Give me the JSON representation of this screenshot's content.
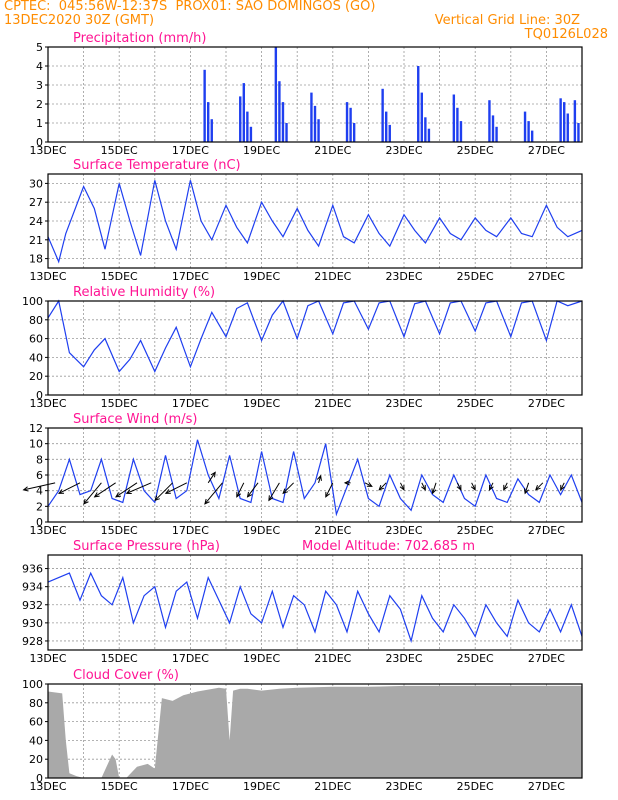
{
  "header": {
    "line1_left": "CPTEC:  045:56W-12:37S  PROX01: SAO DOMINGOS (GO)",
    "line2_left": "13DEC2020 30Z (GMT)",
    "line2_right": "Vertical Grid Line: 30Z",
    "line3_right": "TQ0126L028"
  },
  "colors": {
    "title": "#ff1493",
    "series": "#1f3ff0",
    "cloud": "#a9a9a9",
    "header": "#ff8c00"
  },
  "chart_data": [
    {
      "id": "precip",
      "type": "bar",
      "title": "Precipitation (mm/h)",
      "ylim": [
        0,
        5
      ],
      "yticks": [
        0,
        1,
        2,
        3,
        4,
        5
      ],
      "xlim_days": [
        13,
        28
      ],
      "xtick_labels": [
        "13DEC",
        "15DEC",
        "17DEC",
        "19DEC",
        "21DEC",
        "23DEC",
        "25DEC",
        "27DEC"
      ],
      "grid": true,
      "x_day": [
        17.4,
        17.5,
        17.6,
        18.4,
        18.5,
        18.6,
        18.7,
        19.4,
        19.5,
        19.6,
        19.7,
        20.4,
        20.5,
        20.6,
        21.4,
        21.5,
        21.6,
        22.4,
        22.5,
        22.6,
        23.4,
        23.5,
        23.6,
        23.7,
        24.4,
        24.5,
        24.6,
        25.4,
        25.5,
        25.6,
        26.4,
        26.5,
        26.6,
        27.4,
        27.5,
        27.6,
        27.8,
        27.9
      ],
      "values": [
        3.8,
        2.1,
        1.2,
        2.4,
        3.1,
        1.6,
        0.8,
        5.0,
        3.2,
        2.1,
        1.0,
        2.6,
        1.9,
        1.2,
        2.1,
        1.8,
        1.0,
        2.8,
        1.6,
        0.9,
        4.0,
        2.6,
        1.3,
        0.7,
        2.5,
        1.8,
        1.1,
        2.2,
        1.4,
        0.8,
        1.6,
        1.1,
        0.6,
        2.3,
        2.1,
        1.5,
        2.2,
        1.0
      ]
    },
    {
      "id": "temp",
      "type": "line",
      "title": "Surface Temperature (nC)",
      "ylim": [
        16.5,
        31.5
      ],
      "yticks": [
        18,
        21,
        24,
        27,
        30
      ],
      "xlim_days": [
        13,
        28
      ],
      "xtick_labels": [
        "13DEC",
        "15DEC",
        "17DEC",
        "19DEC",
        "21DEC",
        "23DEC",
        "25DEC",
        "27DEC"
      ],
      "grid": true,
      "x_day": [
        13.0,
        13.3,
        13.5,
        14.0,
        14.3,
        14.6,
        15.0,
        15.3,
        15.6,
        16.0,
        16.3,
        16.6,
        17.0,
        17.3,
        17.6,
        18.0,
        18.3,
        18.6,
        19.0,
        19.3,
        19.6,
        20.0,
        20.3,
        20.6,
        21.0,
        21.3,
        21.6,
        22.0,
        22.3,
        22.6,
        23.0,
        23.3,
        23.6,
        24.0,
        24.3,
        24.6,
        25.0,
        25.3,
        25.6,
        26.0,
        26.3,
        26.6,
        27.0,
        27.3,
        27.6,
        28.0
      ],
      "values": [
        21.5,
        17.5,
        22.0,
        29.5,
        26.0,
        19.5,
        30.0,
        24.0,
        18.5,
        30.5,
        24.0,
        19.5,
        30.5,
        24.0,
        21.0,
        26.5,
        23.0,
        20.5,
        27.0,
        24.0,
        21.5,
        26.0,
        22.5,
        20.0,
        26.5,
        21.5,
        20.5,
        25.0,
        22.0,
        20.0,
        25.0,
        22.5,
        20.5,
        24.5,
        22.0,
        21.0,
        24.5,
        22.5,
        21.5,
        24.5,
        22.0,
        21.5,
        26.5,
        23.0,
        21.5,
        22.5
      ]
    },
    {
      "id": "rh",
      "type": "line",
      "title": "Relative Humidity (%)",
      "ylim": [
        0,
        100
      ],
      "yticks": [
        0,
        20,
        40,
        60,
        80,
        100
      ],
      "xlim_days": [
        13,
        28
      ],
      "xtick_labels": [
        "13DEC",
        "15DEC",
        "17DEC",
        "19DEC",
        "21DEC",
        "23DEC",
        "25DEC",
        "27DEC"
      ],
      "grid": true,
      "x_day": [
        13.0,
        13.3,
        13.6,
        14.0,
        14.3,
        14.6,
        15.0,
        15.3,
        15.6,
        16.0,
        16.3,
        16.6,
        17.0,
        17.3,
        17.6,
        18.0,
        18.3,
        18.6,
        19.0,
        19.3,
        19.6,
        20.0,
        20.3,
        20.6,
        21.0,
        21.3,
        21.6,
        22.0,
        22.3,
        22.6,
        23.0,
        23.3,
        23.6,
        24.0,
        24.3,
        24.6,
        25.0,
        25.3,
        25.6,
        26.0,
        26.3,
        26.6,
        27.0,
        27.3,
        27.6,
        28.0
      ],
      "values": [
        82,
        100,
        45,
        30,
        48,
        60,
        25,
        38,
        58,
        25,
        50,
        72,
        30,
        60,
        88,
        62,
        92,
        98,
        58,
        85,
        100,
        60,
        95,
        100,
        65,
        98,
        100,
        70,
        98,
        100,
        62,
        97,
        100,
        65,
        98,
        100,
        68,
        98,
        100,
        62,
        98,
        100,
        58,
        100,
        95,
        100
      ]
    },
    {
      "id": "wind",
      "type": "line",
      "title": "Surface Wind (m/s)",
      "ylim": [
        0,
        12
      ],
      "yticks": [
        0,
        2,
        4,
        6,
        8,
        10,
        12
      ],
      "xlim_days": [
        13,
        28
      ],
      "xtick_labels": [
        "13DEC",
        "15DEC",
        "17DEC",
        "19DEC",
        "21DEC",
        "23DEC",
        "25DEC",
        "27DEC"
      ],
      "grid": true,
      "x_day": [
        13.0,
        13.3,
        13.6,
        13.9,
        14.2,
        14.5,
        14.8,
        15.1,
        15.4,
        15.7,
        16.0,
        16.3,
        16.6,
        16.9,
        17.2,
        17.5,
        17.8,
        18.1,
        18.4,
        18.7,
        19.0,
        19.3,
        19.6,
        19.9,
        20.2,
        20.5,
        20.8,
        21.1,
        21.4,
        21.7,
        22.0,
        22.3,
        22.6,
        22.9,
        23.2,
        23.5,
        23.8,
        24.1,
        24.4,
        24.7,
        25.0,
        25.3,
        25.6,
        25.9,
        26.2,
        26.5,
        26.8,
        27.1,
        27.4,
        27.7,
        28.0
      ],
      "values": [
        2.0,
        4.0,
        8.0,
        3.5,
        4.0,
        8.0,
        3.0,
        2.5,
        8.0,
        4.0,
        2.5,
        8.5,
        3.0,
        4.0,
        10.5,
        6.0,
        3.0,
        8.5,
        3.0,
        2.5,
        9.0,
        3.0,
        2.5,
        9.0,
        3.0,
        5.0,
        10.0,
        1.0,
        4.5,
        8.0,
        3.0,
        2.0,
        6.0,
        3.0,
        1.5,
        6.0,
        3.5,
        2.5,
        6.0,
        3.0,
        2.0,
        6.0,
        3.0,
        2.5,
        5.5,
        3.5,
        2.5,
        6.0,
        3.5,
        6.0,
        2.5
      ],
      "arrows": [
        {
          "day": 13.2,
          "u": 4.5,
          "v": 1.0
        },
        {
          "day": 13.9,
          "u": 3.0,
          "v": 1.5
        },
        {
          "day": 14.5,
          "u": 2.5,
          "v": 3.0
        },
        {
          "day": 14.9,
          "u": 3.0,
          "v": 2.0
        },
        {
          "day": 15.5,
          "u": 3.0,
          "v": 2.0
        },
        {
          "day": 15.9,
          "u": 3.5,
          "v": 1.5
        },
        {
          "day": 16.5,
          "u": 2.5,
          "v": 2.5
        },
        {
          "day": 16.9,
          "u": 3.0,
          "v": 1.5
        },
        {
          "day": 17.5,
          "u": -1.0,
          "v": -1.5
        },
        {
          "day": 17.9,
          "u": 2.5,
          "v": 3.0
        },
        {
          "day": 18.5,
          "u": 1.0,
          "v": 2.0
        },
        {
          "day": 18.9,
          "u": 1.5,
          "v": 2.0
        },
        {
          "day": 19.5,
          "u": 1.5,
          "v": 2.5
        },
        {
          "day": 19.9,
          "u": 1.5,
          "v": 1.5
        },
        {
          "day": 20.6,
          "u": -0.3,
          "v": -1.0
        },
        {
          "day": 21.0,
          "u": 1.0,
          "v": 2.0
        },
        {
          "day": 21.5,
          "u": 0.8,
          "v": 0.0
        },
        {
          "day": 21.9,
          "u": -1.0,
          "v": 0.5
        },
        {
          "day": 22.5,
          "u": 1.0,
          "v": 1.0
        },
        {
          "day": 22.9,
          "u": -0.5,
          "v": 1.0
        },
        {
          "day": 23.5,
          "u": -0.5,
          "v": 1.0
        },
        {
          "day": 23.9,
          "u": 0.5,
          "v": 1.5
        },
        {
          "day": 24.5,
          "u": -0.5,
          "v": 1.0
        },
        {
          "day": 24.9,
          "u": -0.5,
          "v": 1.0
        },
        {
          "day": 25.5,
          "u": 0.5,
          "v": 1.0
        },
        {
          "day": 25.9,
          "u": 0.5,
          "v": 1.0
        },
        {
          "day": 26.5,
          "u": 0.5,
          "v": 1.5
        },
        {
          "day": 26.9,
          "u": 1.0,
          "v": 1.0
        },
        {
          "day": 27.5,
          "u": 0.5,
          "v": 1.0
        }
      ]
    },
    {
      "id": "pres",
      "type": "line",
      "title": "Surface Pressure (hPa)",
      "subtitle": "Model Altitude: 702.685  m",
      "ylim": [
        927,
        937.5
      ],
      "yticks": [
        928,
        930,
        932,
        934,
        936
      ],
      "xlim_days": [
        13,
        28
      ],
      "xtick_labels": [
        "13DEC",
        "15DEC",
        "17DEC",
        "19DEC",
        "21DEC",
        "23DEC",
        "25DEC",
        "27DEC"
      ],
      "grid": true,
      "x_day": [
        13.0,
        13.3,
        13.6,
        13.9,
        14.2,
        14.5,
        14.8,
        15.1,
        15.4,
        15.7,
        16.0,
        16.3,
        16.6,
        16.9,
        17.2,
        17.5,
        17.8,
        18.1,
        18.4,
        18.7,
        19.0,
        19.3,
        19.6,
        19.9,
        20.2,
        20.5,
        20.8,
        21.1,
        21.4,
        21.7,
        22.0,
        22.3,
        22.6,
        22.9,
        23.2,
        23.5,
        23.8,
        24.1,
        24.4,
        24.7,
        25.0,
        25.3,
        25.6,
        25.9,
        26.2,
        26.5,
        26.8,
        27.1,
        27.4,
        27.7,
        28.0
      ],
      "values": [
        934.5,
        935.0,
        935.5,
        932.5,
        935.5,
        933.0,
        932.0,
        935.0,
        930.0,
        933.0,
        934.0,
        929.5,
        933.5,
        934.5,
        930.5,
        935.0,
        932.5,
        930.0,
        934.0,
        931.0,
        930.0,
        933.5,
        929.5,
        933.0,
        932.0,
        929.0,
        933.5,
        932.0,
        929.0,
        933.5,
        931.0,
        929.0,
        933.0,
        931.5,
        928.0,
        933.0,
        930.5,
        929.0,
        932.0,
        930.5,
        928.5,
        932.0,
        930.0,
        928.5,
        932.5,
        930.0,
        929.0,
        931.5,
        929.0,
        932.0,
        928.5
      ]
    },
    {
      "id": "cloud",
      "type": "area",
      "title": "Cloud Cover (%)",
      "ylim": [
        0,
        100
      ],
      "yticks": [
        0,
        20,
        40,
        60,
        80,
        100
      ],
      "xlim_days": [
        13,
        28
      ],
      "xtick_labels": [
        "13DEC",
        "15DEC",
        "17DEC",
        "19DEC",
        "21DEC",
        "23DEC",
        "25DEC",
        "27DEC"
      ],
      "grid": true,
      "x_day": [
        13.0,
        13.4,
        13.5,
        13.6,
        13.8,
        14.0,
        14.5,
        14.8,
        14.9,
        15.0,
        15.2,
        15.5,
        15.8,
        16.0,
        16.2,
        16.5,
        16.8,
        17.0,
        17.2,
        17.5,
        17.8,
        18.0,
        18.1,
        18.2,
        18.4,
        18.6,
        19.0,
        19.5,
        20.0,
        21.0,
        22.0,
        23.0,
        24.0,
        25.0,
        26.0,
        27.0,
        28.0
      ],
      "values": [
        92,
        90,
        40,
        5,
        2,
        0,
        0,
        25,
        20,
        0,
        0,
        12,
        15,
        10,
        85,
        82,
        88,
        90,
        92,
        94,
        96,
        95,
        40,
        93,
        95,
        95,
        93,
        95,
        96,
        97,
        97,
        98,
        98,
        98,
        98,
        98,
        98
      ]
    }
  ]
}
